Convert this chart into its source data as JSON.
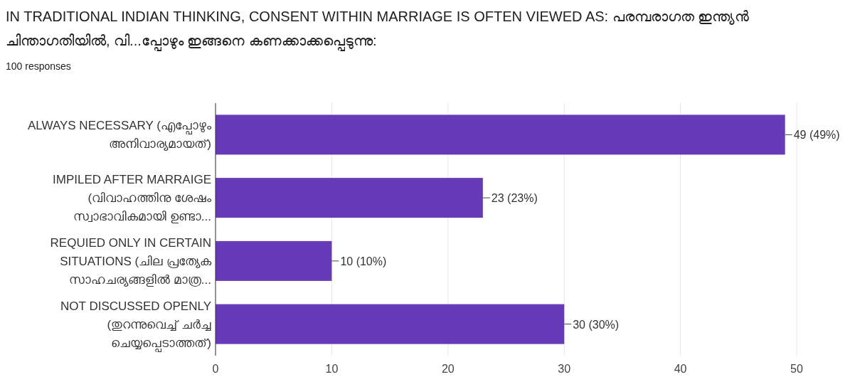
{
  "chart_data": {
    "type": "bar",
    "orientation": "horizontal",
    "title": "IN TRADITIONAL INDIAN THINKING, CONSENT WITHIN MARRIAGE IS OFTEN VIEWED AS: പരമ്പരാഗത ഇന്ത്യൻ ചിന്താഗതിയിൽ, വി...പ്പോഴും ഇങ്ങനെ കണക്കാക്കപ്പെടുന്നു:",
    "subtitle": "100 responses",
    "categories": [
      "ALWAYS NECESSARY (എപ്പോഴും അനിവാര്യമായത്)",
      "IMPILED AFTER MARRAIGE (വിവാഹത്തിനു ശേഷം സ്വാഭാവികമായി ഉണ്ടാ...",
      "REQUIED ONLY IN CERTAIN SITUATIONS (ചില പ്രത്യേക സാഹചര്യങ്ങളിൽ മാത്ര...",
      "NOT DISCUSSED OPENLY (തുറന്നുവെച്ച് ചർച്ച ചെയ്യപ്പെടാത്തത്)"
    ],
    "values": [
      49,
      23,
      10,
      30
    ],
    "value_labels": [
      "49 (49%)",
      "23 (23%)",
      "10 (10%)",
      "30 (30%)"
    ],
    "color": "#673ab7",
    "xlim": [
      0,
      50
    ],
    "xticks": [
      0,
      10,
      20,
      30,
      40,
      50
    ],
    "grid": "x"
  }
}
